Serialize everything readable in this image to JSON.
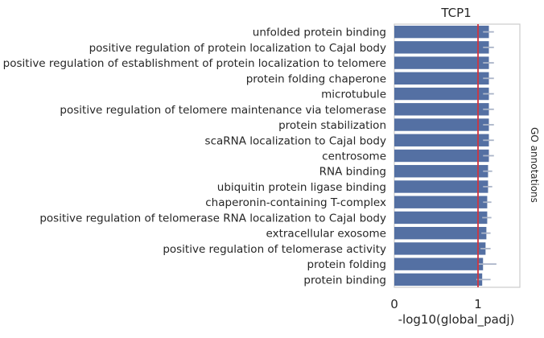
{
  "chart_data": {
    "type": "bar",
    "orientation": "horizontal",
    "title": "TCP1",
    "xlabel": "-log10(global_padj)",
    "ylabel": "",
    "right_label": "GO annotations",
    "xlim": [
      0,
      1.5
    ],
    "xticks": [
      0,
      1
    ],
    "reference_line": 1,
    "grid": false,
    "bar_color": "#5470a3",
    "ref_line_color": "#d1343f",
    "errorbar_color": "#aab4c8",
    "categories": [
      "unfolded protein binding",
      "positive regulation of protein localization to Cajal body",
      "positive regulation of establishment of protein localization to telomere",
      "protein folding chaperone",
      "microtubule",
      "positive regulation of telomere maintenance via telomerase",
      "protein stabilization",
      "scaRNA localization to Cajal body",
      "centrosome",
      "RNA binding",
      "ubiquitin protein ligase binding",
      "chaperonin-containing T-complex",
      "positive regulation of telomerase RNA localization to Cajal body",
      "extracellular exosome",
      "positive regulation of telomerase activity",
      "protein folding",
      "protein binding"
    ],
    "values": [
      1.13,
      1.13,
      1.13,
      1.13,
      1.13,
      1.13,
      1.13,
      1.13,
      1.13,
      1.12,
      1.12,
      1.11,
      1.11,
      1.1,
      1.09,
      1.06,
      1.05
    ],
    "error_low": [
      1.06,
      1.06,
      1.06,
      1.06,
      1.06,
      1.06,
      1.06,
      1.06,
      1.06,
      1.06,
      1.06,
      1.06,
      1.05,
      1.04,
      1.03,
      1.0,
      0.98
    ],
    "error_high": [
      1.19,
      1.19,
      1.19,
      1.19,
      1.19,
      1.19,
      1.19,
      1.19,
      1.19,
      1.17,
      1.17,
      1.16,
      1.16,
      1.15,
      1.15,
      1.22,
      1.15
    ]
  }
}
